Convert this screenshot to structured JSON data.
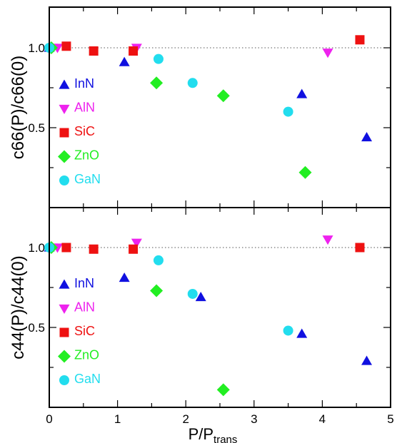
{
  "chart_data": {
    "type": "scatter",
    "xlabel": {
      "main": "P/P",
      "sub": "trans"
    },
    "xlim": [
      0,
      5
    ],
    "xticks": [
      "0",
      "1",
      "2",
      "3",
      "4",
      "5"
    ],
    "panels": [
      {
        "ylabel": "c66(P)/c66(0)",
        "ylim": [
          0.0,
          1.25
        ],
        "yticks": [
          "0.5",
          "1.0"
        ],
        "reference_line": 1.0,
        "series": [
          {
            "name": "InN",
            "marker": "triangle-up",
            "color": "#1010e0",
            "x": [
              0.0,
              1.1,
              3.7,
              4.65
            ],
            "y": [
              1.0,
              0.91,
              0.71,
              0.44
            ]
          },
          {
            "name": "AlN",
            "marker": "triangle-down",
            "color": "#ee22ee",
            "x": [
              0.05,
              0.12,
              1.28,
              4.08
            ],
            "y": [
              1.0,
              1.0,
              1.0,
              0.97
            ]
          },
          {
            "name": "SiC",
            "marker": "square",
            "color": "#ee1111",
            "x": [
              0.25,
              0.65,
              1.23,
              4.55
            ],
            "y": [
              1.01,
              0.98,
              0.98,
              1.05
            ]
          },
          {
            "name": "ZnO",
            "marker": "diamond",
            "color": "#22ee22",
            "x": [
              0.03,
              1.57,
              2.55,
              3.75
            ],
            "y": [
              1.0,
              0.78,
              0.7,
              0.22
            ]
          },
          {
            "name": "GaN",
            "marker": "circle",
            "color": "#22ddee",
            "x": [
              0.0,
              1.6,
              2.1,
              3.5
            ],
            "y": [
              1.0,
              0.93,
              0.78,
              0.6
            ]
          }
        ]
      },
      {
        "ylabel": "c44(P)/c44(0)",
        "ylim": [
          0.0,
          1.25
        ],
        "yticks": [
          "0.5",
          "1.0"
        ],
        "reference_line": 1.0,
        "series": [
          {
            "name": "InN",
            "marker": "triangle-up",
            "color": "#1010e0",
            "x": [
              0.0,
              1.1,
              2.22,
              3.7,
              4.65
            ],
            "y": [
              1.0,
              0.81,
              0.69,
              0.46,
              0.29
            ]
          },
          {
            "name": "AlN",
            "marker": "triangle-down",
            "color": "#ee22ee",
            "x": [
              0.05,
              0.12,
              1.28,
              4.08
            ],
            "y": [
              1.0,
              1.0,
              1.03,
              1.05
            ]
          },
          {
            "name": "SiC",
            "marker": "square",
            "color": "#ee1111",
            "x": [
              0.25,
              0.65,
              1.23,
              4.55
            ],
            "y": [
              1.0,
              0.99,
              0.99,
              1.0
            ]
          },
          {
            "name": "ZnO",
            "marker": "diamond",
            "color": "#22ee22",
            "x": [
              0.03,
              1.57,
              2.55
            ],
            "y": [
              1.0,
              0.73,
              0.11
            ]
          },
          {
            "name": "GaN",
            "marker": "circle",
            "color": "#22ddee",
            "x": [
              0.0,
              1.6,
              2.1,
              3.5
            ],
            "y": [
              1.0,
              0.92,
              0.71,
              0.48
            ]
          }
        ]
      }
    ]
  }
}
